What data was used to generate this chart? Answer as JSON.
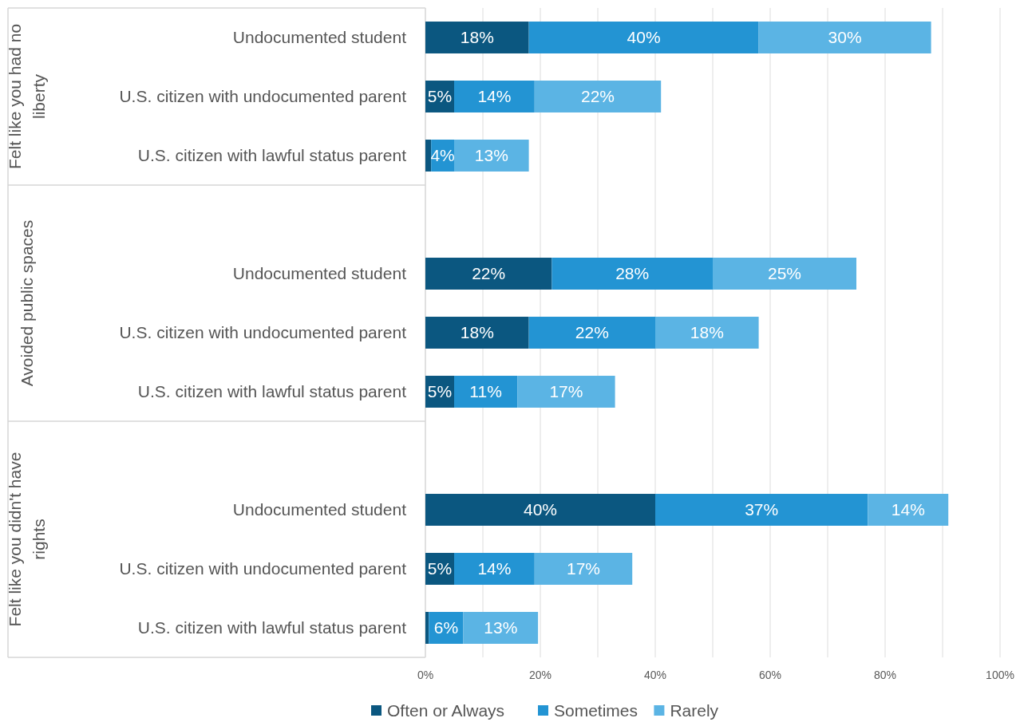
{
  "chart_data": {
    "type": "bar",
    "orientation": "horizontal",
    "stacked": true,
    "categories": [
      "Undocumented student",
      "U.S. citizen with undocumented parent",
      "U.S. citizen with lawful status parent",
      null,
      "Undocumented student",
      "U.S. citizen with undocumented parent",
      "U.S. citizen with lawful status parent",
      null,
      "Undocumented student",
      "U.S. citizen with undocumented parent",
      "U.S. citizen with lawful status parent"
    ],
    "series": [
      {
        "name": "Often or Always",
        "color": "#0b5780",
        "values": [
          18,
          5,
          1,
          null,
          22,
          18,
          5,
          null,
          40,
          5,
          0.6
        ],
        "value_labels": [
          "18%",
          "5%",
          null,
          null,
          "22%",
          "18%",
          "5%",
          null,
          "40%",
          "5%",
          null
        ]
      },
      {
        "name": "Sometimes",
        "color": "#2394d3",
        "values": [
          40,
          14,
          4,
          null,
          28,
          22,
          11,
          null,
          37,
          14,
          6
        ],
        "value_labels": [
          "40%",
          "14%",
          "4%",
          null,
          "28%",
          "22%",
          "11%",
          null,
          "37%",
          "14%",
          "6%"
        ]
      },
      {
        "name": "Rarely",
        "color": "#5bb4e4",
        "values": [
          30,
          22,
          13,
          null,
          25,
          18,
          17,
          null,
          14,
          17,
          13
        ],
        "value_labels": [
          "30%",
          "22%",
          "13%",
          null,
          "25%",
          "18%",
          "17%",
          null,
          "14%",
          "17%",
          "13%"
        ]
      }
    ],
    "xlim": [
      0,
      100
    ],
    "xticks": [
      {
        "value": 0,
        "label": "0%"
      },
      {
        "value": 10,
        "label": null
      },
      {
        "value": 20,
        "label": "20%"
      },
      {
        "value": 30,
        "label": null
      },
      {
        "value": 40,
        "label": "40%"
      },
      {
        "value": 50,
        "label": null
      },
      {
        "value": 60,
        "label": "60%"
      },
      {
        "value": 70,
        "label": null
      },
      {
        "value": 80,
        "label": "80%"
      },
      {
        "value": 90,
        "label": null
      },
      {
        "value": 100,
        "label": "100%"
      }
    ],
    "grid": "x",
    "legend": "bottom",
    "annotations": [
      "Felt like you had no liberty",
      "Avoided public spaces",
      "Felt like you didn't have rights"
    ]
  }
}
